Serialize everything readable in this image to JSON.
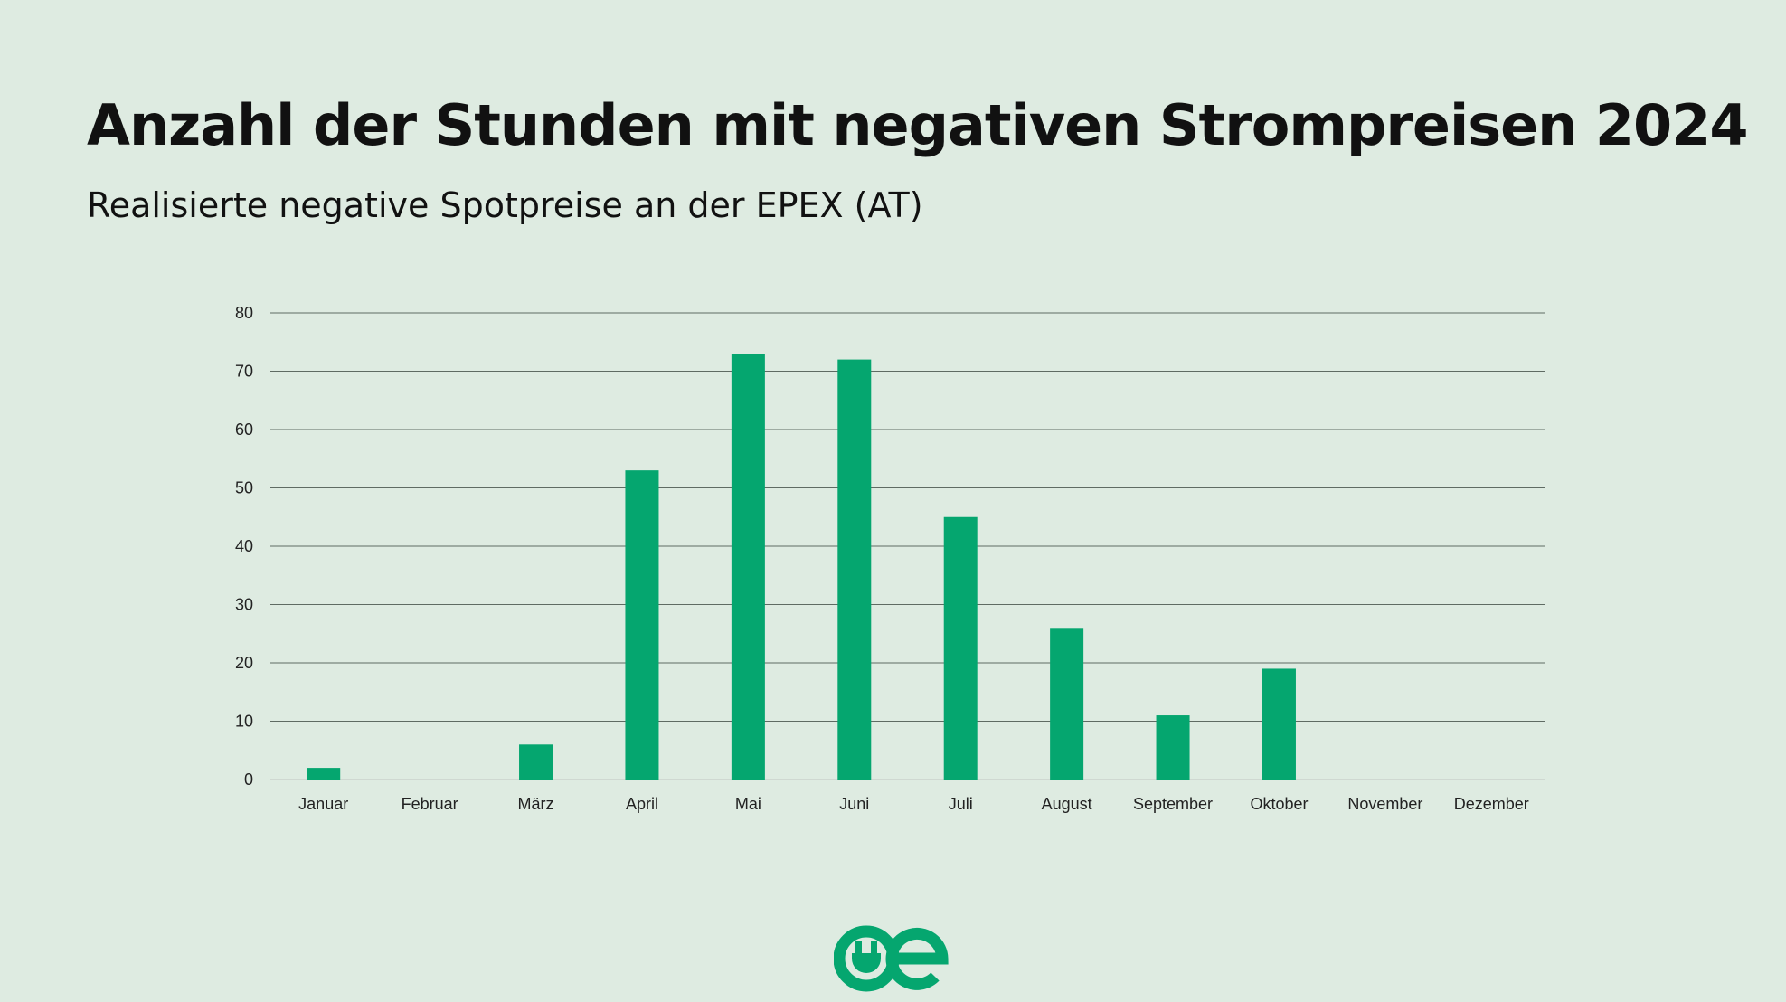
{
  "header": {
    "title": "Anzahl der Stunden mit negativen Strompreisen 2024",
    "subtitle": "Realisierte negative Spotpreise an der EPEX (AT)"
  },
  "colors": {
    "bar": "#05a66f",
    "background": "#deebe1",
    "grid": "#5f6b63"
  },
  "logo": {
    "text": "oe"
  },
  "chart_data": {
    "type": "bar",
    "title": "Anzahl der Stunden mit negativen Strompreisen 2024",
    "subtitle": "Realisierte negative Spotpreise an der EPEX (AT)",
    "categories": [
      "Januar",
      "Februar",
      "März",
      "April",
      "Mai",
      "Juni",
      "Juli",
      "August",
      "September",
      "Oktober",
      "November",
      "Dezember"
    ],
    "values": [
      2,
      0,
      6,
      53,
      73,
      72,
      45,
      26,
      11,
      19,
      0,
      0
    ],
    "xlabel": "",
    "ylabel": "",
    "ylim": [
      0,
      80
    ],
    "yticks": [
      0,
      10,
      20,
      30,
      40,
      50,
      60,
      70,
      80
    ],
    "grid": true,
    "legend": "none"
  }
}
